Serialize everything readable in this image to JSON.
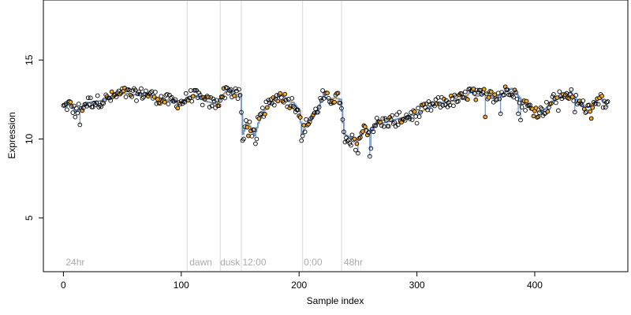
{
  "chart_data": {
    "type": "scatter",
    "title": "",
    "xlabel": "Sample index",
    "ylabel": "Expression",
    "xlim": [
      -17,
      479
    ],
    "ylim": [
      1.6,
      18.8
    ],
    "x_ticks": [
      0,
      100,
      200,
      300,
      400
    ],
    "y_ticks": [
      5,
      10,
      15
    ],
    "grid": false,
    "legend": "none",
    "colors": {
      "points_outline": "#000000",
      "highlight_fill": "#f5a623",
      "step_line": "#6f93c8",
      "highlight_line": "#f5a623",
      "vlines": "#d9d9d9",
      "annotation_text": "#aaaaaa",
      "axis": "#000000"
    },
    "vlines": [
      {
        "x": 105
      },
      {
        "x": 133
      },
      {
        "x": 151
      },
      {
        "x": 203
      },
      {
        "x": 236
      }
    ],
    "annotations": [
      {
        "x": 2,
        "y": 2.0,
        "text": "24hr"
      },
      {
        "x": 107,
        "y": 2.0,
        "text": "dawn"
      },
      {
        "x": 133,
        "y": 2.0,
        "text": "dusk"
      },
      {
        "x": 152,
        "y": 2.0,
        "text": "12:00"
      },
      {
        "x": 204,
        "y": 2.0,
        "text": "0:00"
      },
      {
        "x": 238,
        "y": 2.0,
        "text": "48hr"
      }
    ],
    "anchors": [
      [
        0,
        12.0
      ],
      [
        5,
        12.2
      ],
      [
        10,
        11.7
      ],
      [
        15,
        12.0
      ],
      [
        20,
        12.3
      ],
      [
        30,
        12.4
      ],
      [
        40,
        12.6
      ],
      [
        50,
        12.9
      ],
      [
        60,
        12.8
      ],
      [
        70,
        12.9
      ],
      [
        80,
        12.6
      ],
      [
        90,
        12.4
      ],
      [
        100,
        12.3
      ],
      [
        105,
        12.6
      ],
      [
        110,
        12.8
      ],
      [
        120,
        12.4
      ],
      [
        130,
        12.2
      ],
      [
        135,
        12.8
      ],
      [
        140,
        13.2
      ],
      [
        145,
        12.8
      ],
      [
        150,
        12.8
      ],
      [
        152,
        10.3
      ],
      [
        155,
        11.0
      ],
      [
        158,
        10.8
      ],
      [
        162,
        10.2
      ],
      [
        165,
        11.0
      ],
      [
        170,
        11.8
      ],
      [
        175,
        12.2
      ],
      [
        180,
        12.6
      ],
      [
        185,
        12.8
      ],
      [
        190,
        12.4
      ],
      [
        195,
        12.3
      ],
      [
        200,
        11.8
      ],
      [
        202,
        10.3
      ],
      [
        205,
        10.8
      ],
      [
        210,
        11.3
      ],
      [
        215,
        11.8
      ],
      [
        220,
        12.7
      ],
      [
        225,
        12.5
      ],
      [
        230,
        12.6
      ],
      [
        235,
        12.5
      ],
      [
        238,
        10.3
      ],
      [
        243,
        10.1
      ],
      [
        248,
        9.9
      ],
      [
        252,
        10.2
      ],
      [
        256,
        10.7
      ],
      [
        260,
        10.5
      ],
      [
        265,
        11.0
      ],
      [
        270,
        11.0
      ],
      [
        280,
        11.2
      ],
      [
        290,
        11.4
      ],
      [
        300,
        11.6
      ],
      [
        310,
        12.0
      ],
      [
        320,
        12.3
      ],
      [
        330,
        12.4
      ],
      [
        340,
        12.6
      ],
      [
        345,
        13.0
      ],
      [
        350,
        12.7
      ],
      [
        355,
        12.8
      ],
      [
        360,
        12.9
      ],
      [
        365,
        12.6
      ],
      [
        370,
        12.8
      ],
      [
        375,
        13.0
      ],
      [
        380,
        13.2
      ],
      [
        385,
        12.8
      ],
      [
        390,
        12.3
      ],
      [
        395,
        12.0
      ],
      [
        400,
        11.8
      ],
      [
        405,
        11.7
      ],
      [
        410,
        12.0
      ],
      [
        415,
        12.4
      ],
      [
        420,
        12.7
      ],
      [
        425,
        12.6
      ],
      [
        430,
        13.0
      ],
      [
        435,
        12.5
      ],
      [
        440,
        12.1
      ],
      [
        445,
        12.0
      ],
      [
        450,
        12.3
      ],
      [
        455,
        12.6
      ],
      [
        460,
        12.2
      ],
      [
        462,
        12.0
      ]
    ],
    "outliers": [
      [
        14,
        10.9
      ],
      [
        152,
        9.9
      ],
      [
        153,
        10.0
      ],
      [
        157,
        10.2
      ],
      [
        163,
        9.7
      ],
      [
        164,
        10.0
      ],
      [
        202,
        9.9
      ],
      [
        203,
        10.2
      ],
      [
        239,
        9.8
      ],
      [
        244,
        9.6
      ],
      [
        248,
        9.3
      ],
      [
        250,
        9.1
      ],
      [
        260,
        8.9
      ],
      [
        261,
        9.4
      ],
      [
        282,
        10.8
      ],
      [
        300,
        11.0
      ],
      [
        358,
        11.4
      ],
      [
        371,
        11.6
      ],
      [
        386,
        11.6
      ],
      [
        388,
        11.2
      ],
      [
        420,
        11.8
      ],
      [
        434,
        11.7
      ],
      [
        448,
        11.3
      ]
    ],
    "point_count": 463
  }
}
